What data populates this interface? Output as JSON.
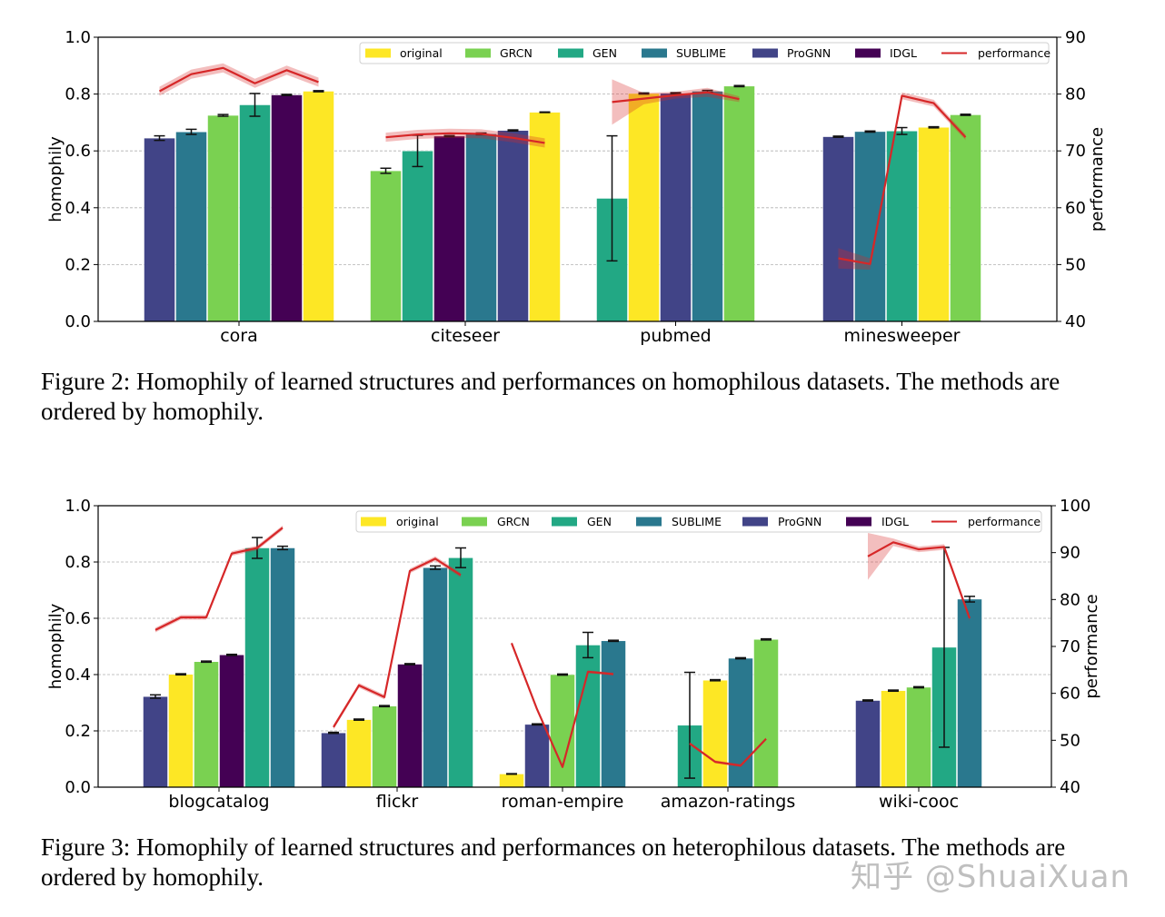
{
  "figures": [
    {
      "caption": "Figure 2: Homophily of learned structures and performances on homophilous datasets. The methods are ordered by homophily.",
      "chart_index": 0
    },
    {
      "caption": "Figure 3: Homophily of learned structures and performances on heterophilous datasets. The methods are ordered by homophily.",
      "chart_index": 1
    }
  ],
  "watermark": "知乎 @ShuaiXuan",
  "colors": {
    "original": "#fde725",
    "GRCN": "#7ad151",
    "GEN": "#22a884",
    "SUBLIME": "#2a788e",
    "ProGNN": "#414487",
    "IDGL": "#440154",
    "performance": "#d62728"
  },
  "chart_data": [
    {
      "type": "bar",
      "ylabel": "homophily",
      "y2label": "performance",
      "ylim": [
        0,
        1.0
      ],
      "y2lim": [
        40,
        90
      ],
      "yticks": [
        "0.0",
        "0.2",
        "0.4",
        "0.6",
        "0.8",
        "1.0"
      ],
      "y2ticks": [
        "40",
        "50",
        "60",
        "70",
        "80",
        "90"
      ],
      "grid": "horizontal-dashed",
      "legend_position": "top-right",
      "legend": [
        "original",
        "GRCN",
        "GEN",
        "SUBLIME",
        "ProGNN",
        "IDGL",
        "performance"
      ],
      "groups": [
        {
          "name": "cora",
          "bars": [
            {
              "method": "ProGNN",
              "value": 0.645,
              "err": 0.008
            },
            {
              "method": "SUBLIME",
              "value": 0.667,
              "err": 0.009
            },
            {
              "method": "GRCN",
              "value": 0.725,
              "err": 0.003
            },
            {
              "method": "GEN",
              "value": 0.762,
              "err": 0.04
            },
            {
              "method": "IDGL",
              "value": 0.797,
              "err": 0.002
            },
            {
              "method": "original",
              "value": 0.81,
              "err": 0.002
            }
          ],
          "performance": [
            80.5,
            83.5,
            84.6,
            81.9,
            84.2,
            82.1
          ],
          "perf_band": 0.8
        },
        {
          "name": "citeseer",
          "bars": [
            {
              "method": "GRCN",
              "value": 0.53,
              "err": 0.009
            },
            {
              "method": "GEN",
              "value": 0.6,
              "err": 0.055
            },
            {
              "method": "IDGL",
              "value": 0.652,
              "err": 0.002
            },
            {
              "method": "SUBLIME",
              "value": 0.66,
              "err": 0.003
            },
            {
              "method": "ProGNN",
              "value": 0.672,
              "err": 0.002
            },
            {
              "method": "original",
              "value": 0.736,
              "err": 0.001
            }
          ],
          "performance": [
            72.4,
            72.9,
            73.1,
            73.0,
            72.3,
            71.4
          ],
          "perf_band": 0.8
        },
        {
          "name": "pubmed",
          "bars": [
            {
              "method": "GEN",
              "value": 0.433,
              "err": 0.22
            },
            {
              "method": "original",
              "value": 0.802,
              "err": 0.002
            },
            {
              "method": "ProGNN",
              "value": 0.803,
              "err": 0.002
            },
            {
              "method": "SUBLIME",
              "value": 0.81,
              "err": 0.003
            },
            {
              "method": "GRCN",
              "value": 0.828,
              "err": 0.002
            }
          ],
          "performance": [
            78.6,
            79.2,
            79.8,
            80.3,
            79.1
          ],
          "perf_band_values": [
            4.0,
            1.0,
            0.6,
            0.8,
            0.5
          ]
        },
        {
          "name": "minesweeper",
          "bars": [
            {
              "method": "ProGNN",
              "value": 0.65,
              "err": 0.002
            },
            {
              "method": "SUBLIME",
              "value": 0.668,
              "err": 0.002
            },
            {
              "method": "GEN",
              "value": 0.67,
              "err": 0.012
            },
            {
              "method": "original",
              "value": 0.683,
              "err": 0.002
            },
            {
              "method": "GRCN",
              "value": 0.727,
              "err": 0.002
            }
          ],
          "performance": [
            51.1,
            50.1,
            79.7,
            78.4,
            72.4
          ],
          "perf_band_values": [
            1.8,
            1.0,
            0.6,
            0.6,
            0.5
          ]
        }
      ]
    },
    {
      "type": "bar",
      "ylabel": "homophily",
      "y2label": "performance",
      "ylim": [
        0,
        1.0
      ],
      "y2lim": [
        40,
        100
      ],
      "yticks": [
        "0.0",
        "0.2",
        "0.4",
        "0.6",
        "0.8",
        "1.0"
      ],
      "y2ticks": [
        "40",
        "50",
        "60",
        "70",
        "80",
        "90",
        "100"
      ],
      "grid": "horizontal-dashed",
      "legend_position": "top-right",
      "legend": [
        "original",
        "GRCN",
        "GEN",
        "SUBLIME",
        "ProGNN",
        "IDGL",
        "performance"
      ],
      "groups": [
        {
          "name": "blogcatalog",
          "bars": [
            {
              "method": "ProGNN",
              "value": 0.322,
              "err": 0.006
            },
            {
              "method": "original",
              "value": 0.401,
              "err": 0.002
            },
            {
              "method": "GRCN",
              "value": 0.446,
              "err": 0.002
            },
            {
              "method": "IDGL",
              "value": 0.47,
              "err": 0.002
            },
            {
              "method": "GEN",
              "value": 0.85,
              "err": 0.037
            },
            {
              "method": "SUBLIME",
              "value": 0.85,
              "err": 0.006
            }
          ],
          "performance": [
            73.5,
            76.2,
            76.2,
            89.8,
            91.0,
            95.3
          ],
          "perf_band": 0.5
        },
        {
          "name": "flickr",
          "bars": [
            {
              "method": "ProGNN",
              "value": 0.193,
              "err": 0.002
            },
            {
              "method": "original",
              "value": 0.24,
              "err": 0.002
            },
            {
              "method": "GRCN",
              "value": 0.288,
              "err": 0.002
            },
            {
              "method": "IDGL",
              "value": 0.437,
              "err": 0.002
            },
            {
              "method": "SUBLIME",
              "value": 0.78,
              "err": 0.006
            },
            {
              "method": "GEN",
              "value": 0.815,
              "err": 0.035
            }
          ],
          "performance": [
            52.8,
            61.7,
            59.2,
            86.1,
            88.7,
            85.2
          ],
          "perf_band": 0.5
        },
        {
          "name": "roman-empire",
          "bars": [
            {
              "method": "original",
              "value": 0.047,
              "err": 0.001
            },
            {
              "method": "ProGNN",
              "value": 0.223,
              "err": 0.002
            },
            {
              "method": "GRCN",
              "value": 0.4,
              "err": 0.002
            },
            {
              "method": "GEN",
              "value": 0.505,
              "err": 0.045
            },
            {
              "method": "SUBLIME",
              "value": 0.52,
              "err": 0.002
            }
          ],
          "performance": [
            70.7,
            56.6,
            44.3,
            64.6,
            64.1
          ],
          "perf_band": 0.3
        },
        {
          "name": "amazon-ratings",
          "bars": [
            {
              "method": "GEN",
              "value": 0.22,
              "err": 0.188
            },
            {
              "method": "original",
              "value": 0.38,
              "err": 0.002
            },
            {
              "method": "SUBLIME",
              "value": 0.458,
              "err": 0.002
            },
            {
              "method": "GRCN",
              "value": 0.525,
              "err": 0.002
            }
          ],
          "performance": [
            49.3,
            45.4,
            44.6,
            50.3
          ],
          "perf_band": 0.3
        },
        {
          "name": "wiki-cooc",
          "bars": [
            {
              "method": "ProGNN",
              "value": 0.308,
              "err": 0.002
            },
            {
              "method": "original",
              "value": 0.343,
              "err": 0.002
            },
            {
              "method": "GRCN",
              "value": 0.355,
              "err": 0.002
            },
            {
              "method": "GEN",
              "value": 0.497,
              "err": 0.355
            },
            {
              "method": "SUBLIME",
              "value": 0.668,
              "err": 0.01
            }
          ],
          "performance": [
            89.2,
            92.2,
            90.7,
            91.2,
            76.0
          ],
          "perf_band_values": [
            5.0,
            0.8,
            0.6,
            0.6,
            0.6
          ]
        }
      ]
    }
  ]
}
